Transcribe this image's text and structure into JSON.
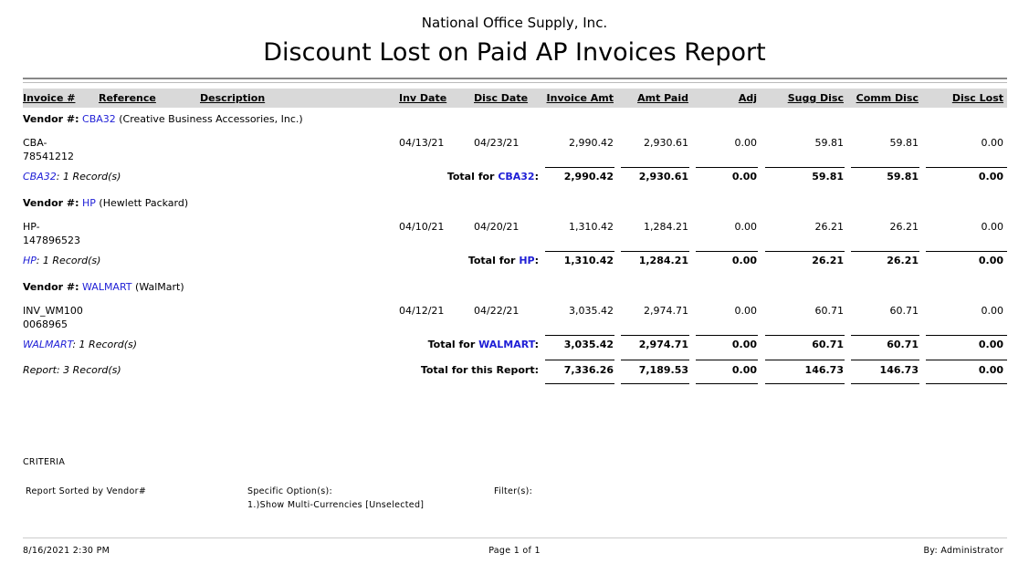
{
  "company": "National Office Supply, Inc.",
  "title": "Discount Lost on Paid AP Invoices Report",
  "columns": [
    "Invoice #",
    "Reference",
    "Description",
    "Inv Date",
    "Disc Date",
    "Invoice Amt",
    "Amt Paid",
    "Adj",
    "Sugg Disc",
    "Comm Disc",
    "Disc Lost"
  ],
  "vendor_label": "Vendor #:",
  "total_for_label": "Total for",
  "vendors": [
    {
      "id": "CBA32",
      "name": "(Creative Business Accessories, Inc.)",
      "invoice_line1": "CBA-",
      "invoice_line2": "78541212",
      "inv_date": "04/13/21",
      "disc_date": "04/23/21",
      "values": [
        "2,990.42",
        "2,930.61",
        "0.00",
        "59.81",
        "59.81",
        "0.00"
      ],
      "records": ": 1 Record(s)",
      "totals": [
        "2,990.42",
        "2,930.61",
        "0.00",
        "59.81",
        "59.81",
        "0.00"
      ]
    },
    {
      "id": "HP",
      "name": "(Hewlett Packard)",
      "invoice_line1": "HP-",
      "invoice_line2": "147896523",
      "inv_date": "04/10/21",
      "disc_date": "04/20/21",
      "values": [
        "1,310.42",
        "1,284.21",
        "0.00",
        "26.21",
        "26.21",
        "0.00"
      ],
      "records": ": 1 Record(s)",
      "totals": [
        "1,310.42",
        "1,284.21",
        "0.00",
        "26.21",
        "26.21",
        "0.00"
      ]
    },
    {
      "id": "WALMART",
      "name": "(WalMart)",
      "invoice_line1": "INV_WM100",
      "invoice_line2": "0068965",
      "inv_date": "04/12/21",
      "disc_date": "04/22/21",
      "values": [
        "3,035.42",
        "2,974.71",
        "0.00",
        "60.71",
        "60.71",
        "0.00"
      ],
      "records": ": 1 Record(s)",
      "totals": [
        "3,035.42",
        "2,974.71",
        "0.00",
        "60.71",
        "60.71",
        "0.00"
      ]
    }
  ],
  "report_total": {
    "records": "Report: 3 Record(s)",
    "label": "Total for this Report:",
    "values": [
      "7,336.26",
      "7,189.53",
      "0.00",
      "146.73",
      "146.73",
      "0.00"
    ]
  },
  "criteria": {
    "heading": "CRITERIA",
    "sorted": "Report Sorted by Vendor#",
    "options_label": "Specific Option(s):",
    "option1": "1.)Show Multi-Currencies [Unselected]",
    "filters_label": "Filter(s):"
  },
  "footer": {
    "datetime": "8/16/2021 2:30 PM",
    "page": "Page 1 of 1",
    "by": "By: Administrator"
  },
  "colors": {
    "link": "#1f1fd6",
    "header_band": "#d9d9d9"
  }
}
